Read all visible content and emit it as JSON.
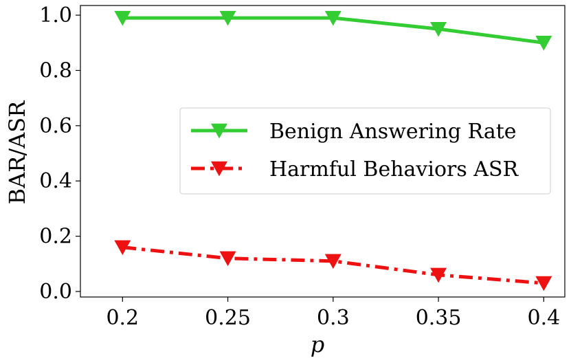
{
  "chart_data": {
    "type": "line",
    "x": [
      0.2,
      0.25,
      0.3,
      0.35,
      0.4
    ],
    "x_tick_labels": [
      "0.2",
      "0.25",
      "0.3",
      "0.35",
      "0.4"
    ],
    "y_ticks": [
      0.0,
      0.2,
      0.4,
      0.6,
      0.8,
      1.0
    ],
    "y_tick_labels": [
      "0.0",
      "0.2",
      "0.4",
      "0.6",
      "0.8",
      "1.0"
    ],
    "xlabel": "p",
    "ylabel": "BAR/ASR",
    "xlim": [
      0.18,
      0.41
    ],
    "ylim": [
      -0.02,
      1.035
    ],
    "grid": false,
    "legend_position": "center-right",
    "series": [
      {
        "name": "Benign Answering Rate",
        "values": [
          0.99,
          0.99,
          0.99,
          0.95,
          0.9
        ],
        "color": "#33cc33",
        "line_style": "solid",
        "marker": "triangle-down"
      },
      {
        "name": "Harmful Behaviors ASR",
        "values": [
          0.16,
          0.12,
          0.11,
          0.06,
          0.03
        ],
        "color": "#ee1111",
        "line_style": "dash-dot",
        "marker": "triangle-down"
      }
    ]
  }
}
